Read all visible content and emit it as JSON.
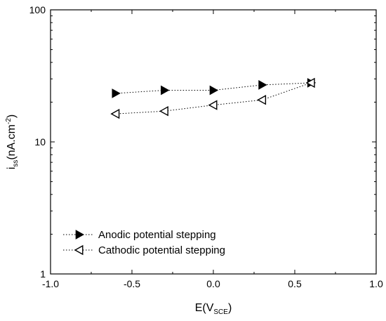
{
  "chart_data": {
    "type": "scatter",
    "title": "",
    "xlabel": {
      "main": "E(V",
      "sub": "SCE",
      "tail": ")"
    },
    "ylabel": {
      "main": "i",
      "sub": "ss",
      "mid": "(nA.cm",
      "sup": "-2",
      "tail": ")"
    },
    "xlim": [
      -1.0,
      1.0
    ],
    "ylim": [
      1,
      100
    ],
    "yscale": "log",
    "grid": false,
    "legend_position": "bottom-left",
    "x_ticks": [
      -1.0,
      -0.5,
      0.0,
      0.5,
      1.0
    ],
    "x_tick_labels": [
      "-1.0",
      "-0.5",
      "0.0",
      "0.5",
      "1.0"
    ],
    "y_ticks": [
      1,
      10,
      100
    ],
    "y_tick_labels": [
      "1",
      "10",
      "100"
    ],
    "series": [
      {
        "name": "Anodic potential stepping",
        "marker": "filled-right-triangle",
        "line_style": "dotted",
        "color": "#000000",
        "x": [
          -0.6,
          -0.3,
          0.0,
          0.3,
          0.6
        ],
        "y": [
          23.3,
          24.6,
          24.6,
          27.0,
          28.0
        ]
      },
      {
        "name": "Cathodic potential stepping",
        "marker": "open-left-triangle",
        "line_style": "dotted",
        "color": "#000000",
        "x": [
          0.6,
          0.3,
          0.0,
          -0.3,
          -0.6
        ],
        "y": [
          28.0,
          20.8,
          19.0,
          17.1,
          16.3
        ]
      }
    ]
  }
}
